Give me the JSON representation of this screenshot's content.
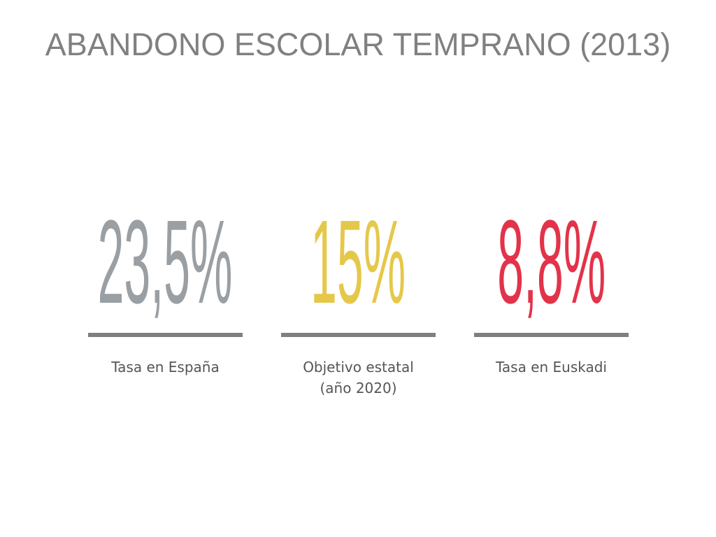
{
  "title": "ABANDONO ESCOLAR TEMPRANO (2013)",
  "stats": [
    {
      "value": "23,5%",
      "label": "Tasa en España",
      "color": "#9a9fa3"
    },
    {
      "value": "15%",
      "label": "Objetivo estatal\n(año 2020)",
      "color": "#e5c84a"
    },
    {
      "value": "8,8%",
      "label": "Tasa en Euskadi",
      "color": "#e2334a"
    }
  ],
  "bar_color": "#7f7f7f"
}
